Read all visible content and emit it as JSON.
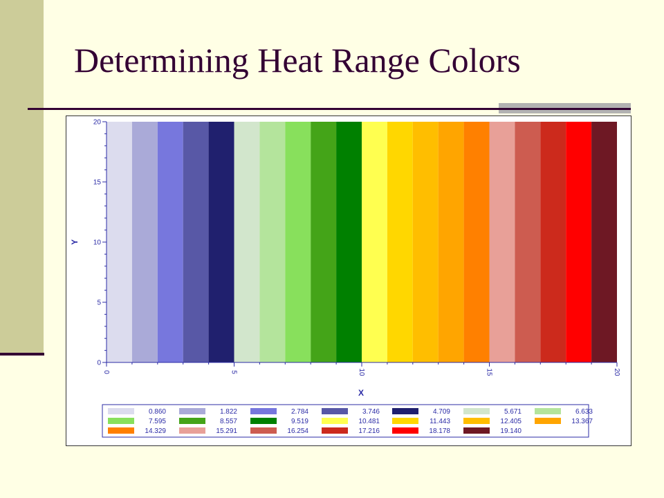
{
  "slide": {
    "title": "Determining Heat Range Colors",
    "colors": {
      "background": "#FFFFE5",
      "left_band": "#CCCC99",
      "title_text": "#330033",
      "accent_gray": "#B2B2B2"
    }
  },
  "chart_data": {
    "type": "heatmap",
    "title": "",
    "xlabel": "X",
    "ylabel": "Y",
    "xlim": [
      0,
      20
    ],
    "ylim": [
      0,
      20
    ],
    "x_ticks": [
      "0",
      "5",
      "10",
      "15",
      "20"
    ],
    "y_ticks": [
      "0",
      "5",
      "10",
      "15",
      "20"
    ],
    "grid": false,
    "legend_position": "bottom",
    "bands": [
      {
        "x0": 0,
        "x1": 1,
        "value": "0.860",
        "color": "#DCDCEE"
      },
      {
        "x0": 1,
        "x1": 2,
        "value": "1.822",
        "color": "#AAAAD8"
      },
      {
        "x0": 2,
        "x1": 3,
        "value": "2.784",
        "color": "#7777DD"
      },
      {
        "x0": 3,
        "x1": 4,
        "value": "3.746",
        "color": "#5858A6"
      },
      {
        "x0": 4,
        "x1": 5,
        "value": "4.709",
        "color": "#20206E"
      },
      {
        "x0": 5,
        "x1": 6,
        "value": "5.671",
        "color": "#D2E6CC"
      },
      {
        "x0": 6,
        "x1": 7,
        "value": "6.633",
        "color": "#B4E49C"
      },
      {
        "x0": 7,
        "x1": 8,
        "value": "7.595",
        "color": "#88E05C"
      },
      {
        "x0": 8,
        "x1": 9,
        "value": "8.557",
        "color": "#44A418"
      },
      {
        "x0": 9,
        "x1": 10,
        "value": "9.519",
        "color": "#008000"
      },
      {
        "x0": 10,
        "x1": 11,
        "value": "10.481",
        "color": "#FFFF50"
      },
      {
        "x0": 11,
        "x1": 12,
        "value": "11.443",
        "color": "#FFD700"
      },
      {
        "x0": 12,
        "x1": 13,
        "value": "12.405",
        "color": "#FFBE00"
      },
      {
        "x0": 13,
        "x1": 14,
        "value": "13.367",
        "color": "#FFA500"
      },
      {
        "x0": 14,
        "x1": 15,
        "value": "14.329",
        "color": "#FF8000"
      },
      {
        "x0": 15,
        "x1": 16,
        "value": "15.291",
        "color": "#E8A098"
      },
      {
        "x0": 16,
        "x1": 17,
        "value": "16.254",
        "color": "#CD5C50"
      },
      {
        "x0": 17,
        "x1": 18,
        "value": "17.216",
        "color": "#CC2A1C"
      },
      {
        "x0": 18,
        "x1": 19,
        "value": "18.178",
        "color": "#FF0000"
      },
      {
        "x0": 19,
        "x1": 20,
        "value": "19.140",
        "color": "#6E1824"
      }
    ]
  }
}
